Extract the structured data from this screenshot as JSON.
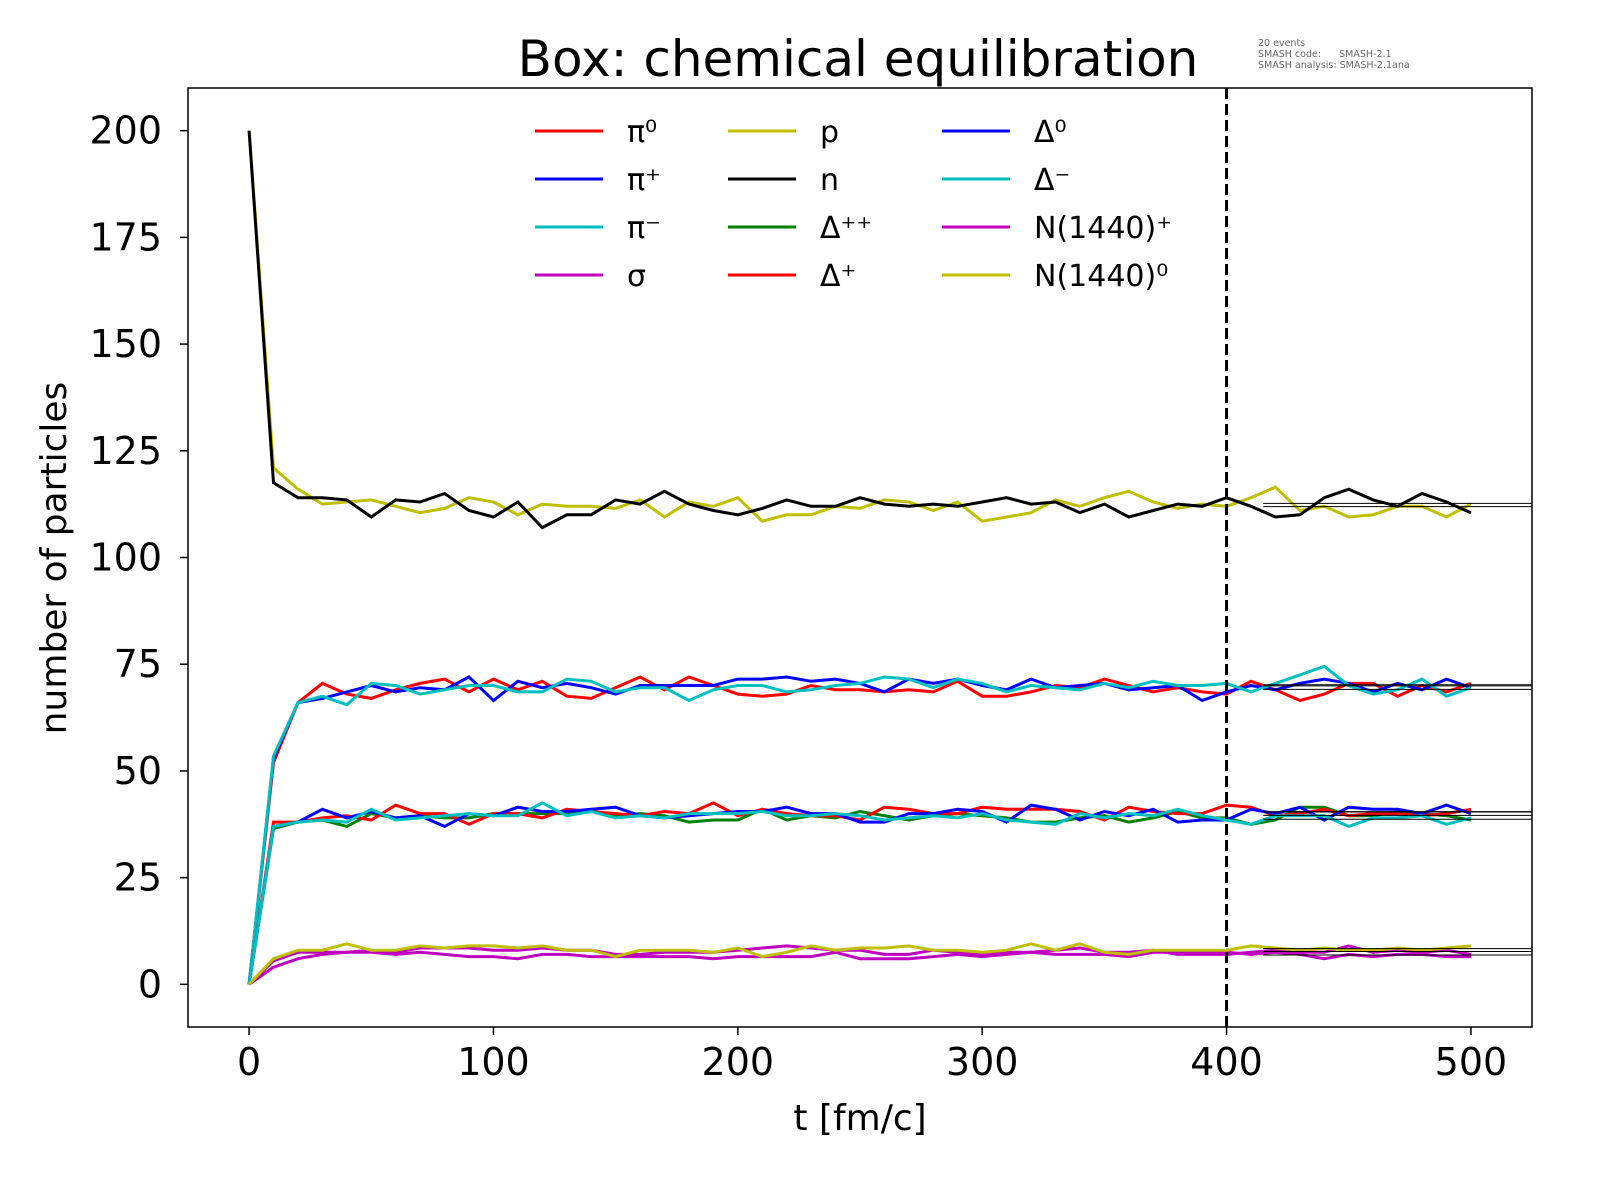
{
  "chart_data": {
    "type": "line",
    "title": "Box: chemical equilibration",
    "annotation": [
      "20 events",
      "SMASH code:      SMASH-2.1",
      "SMASH analysis: SMASH-2.1ana"
    ],
    "xlabel": "t [fm/c]",
    "ylabel": "number of particles",
    "xlim": [
      -25,
      525
    ],
    "ylim": [
      -10,
      210
    ],
    "xticks": [
      0,
      100,
      200,
      300,
      400,
      500
    ],
    "yticks": [
      0,
      25,
      50,
      75,
      100,
      125,
      150,
      175,
      200
    ],
    "grid": false,
    "legend_placement": "top-center",
    "vertical_marker": 400,
    "average_from": 415,
    "x": [
      0,
      10,
      20,
      30,
      40,
      50,
      60,
      70,
      80,
      90,
      100,
      110,
      120,
      130,
      140,
      150,
      160,
      170,
      180,
      190,
      200,
      210,
      220,
      230,
      240,
      250,
      260,
      270,
      280,
      290,
      300,
      310,
      320,
      330,
      340,
      350,
      360,
      370,
      380,
      390,
      400,
      410,
      420,
      430,
      440,
      450,
      460,
      470,
      480,
      490,
      500
    ],
    "series": [
      {
        "name": "π⁰",
        "color": "#ff0000",
        "values": [
          0,
          52,
          66,
          70.5,
          68,
          67,
          69,
          70.5,
          71.5,
          68.5,
          71.5,
          69,
          71,
          67.5,
          67,
          69.5,
          72,
          69,
          72,
          70,
          68,
          67.5,
          68,
          70,
          69,
          69,
          68.5,
          69,
          68.5,
          71,
          67.5,
          67.5,
          68.5,
          70,
          69.5,
          71.5,
          70,
          68.5,
          69.5,
          68.5,
          68,
          71,
          69,
          66.5,
          68,
          70.5,
          70.5,
          67.5,
          70,
          68.5,
          70.5
        ]
      },
      {
        "name": "π⁺",
        "color": "#0000ff",
        "values": [
          0,
          53,
          66,
          67,
          68.5,
          70,
          68.5,
          69.5,
          69,
          72,
          66.5,
          71,
          69.5,
          70.5,
          69.5,
          68,
          70,
          70,
          70,
          70,
          71.5,
          71.5,
          72,
          71,
          71.5,
          70.5,
          68.5,
          71.5,
          70.5,
          71.5,
          70,
          69,
          71.5,
          69.5,
          70,
          70.5,
          69,
          69.5,
          70,
          66.5,
          68.5,
          70,
          69,
          70.5,
          71.5,
          70.5,
          68.5,
          70.5,
          69,
          71.5,
          69.5
        ]
      },
      {
        "name": "π⁻",
        "color": "#00bfbf",
        "values": [
          0,
          53.5,
          66,
          67.5,
          65.5,
          70.5,
          70,
          68,
          69,
          70,
          70,
          68.5,
          68.5,
          71.5,
          71,
          68.5,
          69.5,
          69.5,
          66.5,
          69,
          70,
          70,
          68.5,
          69,
          70,
          70.5,
          72,
          71.5,
          69.5,
          71.5,
          70.5,
          68.5,
          70,
          69.5,
          69,
          70.5,
          69.5,
          71,
          70,
          70,
          70.5,
          68.5,
          70.5,
          72.5,
          74.5,
          70,
          68,
          69,
          71.5,
          67.5,
          69.5
        ]
      },
      {
        "name": "σ",
        "color": "#bf00bf",
        "values": [
          0,
          4,
          6,
          7,
          7.5,
          7.5,
          7,
          7.5,
          7,
          6.5,
          6.5,
          6,
          7,
          7,
          6.5,
          6.5,
          6.5,
          6.5,
          6.5,
          6,
          6.5,
          6.5,
          6.5,
          6.5,
          7.5,
          6,
          6,
          6,
          6.5,
          7,
          6.5,
          7,
          7.5,
          7,
          7,
          7,
          6.5,
          7.5,
          7.5,
          7.5,
          7.5,
          7,
          7.5,
          7,
          6,
          7,
          6.5,
          7,
          7,
          6.5,
          6.5
        ]
      },
      {
        "name": "p",
        "color": "#bfbf00",
        "values": [
          200,
          121,
          116,
          112.5,
          113,
          113.5,
          112,
          110.5,
          111.5,
          114,
          113,
          110,
          112.5,
          112,
          112,
          111.5,
          113.5,
          109.5,
          113,
          112,
          114,
          108.5,
          110,
          110,
          112,
          111.5,
          113.5,
          113,
          111,
          113,
          108.5,
          109.5,
          110.5,
          113.5,
          112,
          114,
          115.5,
          113,
          111.5,
          112.5,
          112,
          114,
          116.5,
          111,
          112,
          109.5,
          110,
          112,
          112,
          109.5,
          112.5
        ]
      },
      {
        "name": "n",
        "color": "#000000",
        "values": [
          200,
          117.5,
          114,
          114,
          113.5,
          109.5,
          113.5,
          113,
          115,
          111,
          109.5,
          113,
          107,
          110,
          110,
          113.5,
          112.5,
          115.5,
          112.5,
          111,
          110,
          111.5,
          113.5,
          112,
          112,
          114,
          112.5,
          112,
          112.5,
          112,
          113,
          114,
          112.5,
          113,
          110.5,
          112.5,
          109.5,
          111,
          112.5,
          112,
          114,
          112,
          109.5,
          110,
          114,
          116,
          113.5,
          112,
          115,
          113,
          110.5
        ]
      },
      {
        "name": "Δ⁺⁺",
        "color": "#008000",
        "values": [
          0,
          36.5,
          38,
          38.5,
          37,
          40,
          39,
          39.5,
          39,
          39,
          40,
          40,
          40,
          40,
          40.5,
          39.5,
          40,
          39.5,
          38,
          38.5,
          38.5,
          41,
          38.5,
          39.5,
          39,
          40.5,
          39.5,
          38.5,
          39.5,
          40,
          39.5,
          39,
          38,
          38,
          39,
          39.5,
          38,
          39,
          40.5,
          39,
          39,
          37.5,
          38.5,
          41.5,
          41.5,
          39.5,
          39.5,
          40.5,
          40,
          39.5,
          38.5
        ]
      },
      {
        "name": "Δ⁺",
        "color": "#ff0000",
        "values": [
          0,
          38,
          38,
          39,
          39.5,
          38.5,
          42,
          40,
          40,
          37.5,
          40,
          40,
          39,
          41,
          40.5,
          40,
          39.5,
          40.5,
          40,
          42.5,
          39.5,
          41,
          40,
          39.5,
          39.5,
          38.5,
          41.5,
          41,
          40,
          40,
          41.5,
          41,
          41,
          41,
          40.5,
          38.5,
          41.5,
          40.5,
          40,
          40,
          42,
          41.5,
          39.5,
          40,
          41,
          39.5,
          40,
          40,
          39.5,
          40,
          41
        ]
      },
      {
        "name": "Δ⁰",
        "color": "#0000ff",
        "values": [
          0,
          37,
          38,
          41,
          39,
          40.5,
          39,
          39.5,
          37,
          40,
          39.5,
          41.5,
          40.5,
          40.5,
          41,
          41.5,
          39.5,
          39,
          39.5,
          40,
          40.5,
          40.5,
          41.5,
          40,
          40,
          38,
          38,
          40,
          40,
          41,
          40.5,
          38,
          42,
          41,
          38.5,
          40.5,
          39.5,
          41,
          38,
          38.5,
          38.5,
          41,
          40,
          41.5,
          38.5,
          41.5,
          41,
          41,
          40,
          42,
          40
        ]
      },
      {
        "name": "Δ⁻",
        "color": "#00bfbf",
        "values": [
          0,
          37,
          38,
          38.5,
          38,
          41,
          38.5,
          39,
          39.5,
          40,
          39.5,
          39.5,
          42.5,
          39.5,
          40.5,
          39,
          39.5,
          39,
          40,
          40,
          40,
          40.5,
          39.5,
          39.5,
          40,
          39.5,
          38.5,
          39,
          39.5,
          39,
          40,
          38.5,
          38,
          37.5,
          40,
          39,
          40,
          39.5,
          41,
          39.5,
          38.5,
          37.5,
          39.5,
          39.5,
          39.5,
          37,
          39,
          39,
          39.5,
          37.5,
          39
        ]
      },
      {
        "name": "N(1440)⁺",
        "color": "#bf00bf",
        "values": [
          0,
          5.5,
          7.5,
          7.5,
          7.5,
          8,
          7.5,
          8.5,
          8.5,
          8.5,
          8,
          8,
          8.5,
          8,
          8,
          7,
          7,
          7.5,
          7.5,
          7.5,
          8,
          8.5,
          9,
          8.5,
          8,
          8,
          7,
          7,
          8,
          7.5,
          7,
          7.5,
          7.5,
          8,
          8.5,
          7.5,
          7.5,
          8,
          7,
          7,
          7,
          7.5,
          8,
          7.5,
          7.5,
          9,
          7.5,
          8,
          7.5,
          8,
          7
        ]
      },
      {
        "name": "N(1440)⁰",
        "color": "#bfbf00",
        "values": [
          0,
          6,
          8,
          8,
          9.5,
          8,
          8,
          9,
          8.5,
          9,
          9,
          8.5,
          9,
          8,
          8,
          6.5,
          8,
          8,
          8,
          7.5,
          8.5,
          6.5,
          7.5,
          9,
          8,
          8.5,
          8.5,
          9,
          8,
          8,
          7.5,
          8,
          9.5,
          8,
          9.5,
          7.5,
          7,
          8,
          8,
          8,
          8,
          9,
          8.5,
          8,
          8.5,
          8,
          8,
          8.5,
          8,
          8.5,
          9
        ]
      }
    ]
  }
}
